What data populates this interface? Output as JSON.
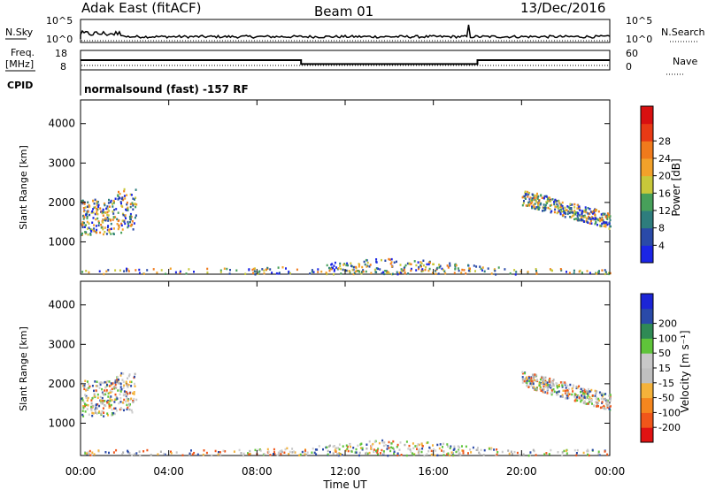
{
  "header": {
    "station": "Adak East (fitACF)",
    "beam": "Beam 01",
    "date": "13/Dec/2016"
  },
  "side_labels": {
    "nsky": "N.Sky",
    "nsearch": "N.Search",
    "freq_line1": "Freq.",
    "freq_line2": "[MHz]",
    "nave": "Nave",
    "cpid": "CPID"
  },
  "mini_axes": {
    "nsky_top": "10^5",
    "nsky_bottom": "10^0",
    "nsearch_top": "10^5",
    "nsearch_bottom": "10^0",
    "freq_top": "18",
    "freq_bottom": "8",
    "nave_top": "60",
    "nave_bottom": "0"
  },
  "cpid_text": "normalsound (fast) -157 RF",
  "chart_data": [
    {
      "type": "line",
      "title": "N.Sky / N.Search",
      "ylim_log10": [
        0,
        5
      ],
      "note_spikes_hours": [
        0.3,
        0.6,
        0.9,
        1.2,
        1.5,
        17.6
      ]
    },
    {
      "type": "line",
      "name": "Freq. [MHz]",
      "ylim": [
        8,
        18
      ],
      "x": [
        0,
        10,
        10,
        18,
        18,
        24
      ],
      "values": [
        13,
        13,
        11,
        11,
        13,
        13
      ]
    },
    {
      "type": "heatmap",
      "name": "Power",
      "ylabel": "Slant Range [km]",
      "yticks": [
        "1000",
        "2000",
        "3000",
        "4000"
      ],
      "ylim": [
        180,
        4600
      ],
      "colorbar_label": "Power [dB]",
      "colorbar_ticks": [
        "4",
        "8",
        "12",
        "16",
        "20",
        "24",
        "28"
      ],
      "colorbar_colors": [
        "#1b25e6",
        "#2a4aa8",
        "#2e7d7d",
        "#47a05a",
        "#c8c83a",
        "#f2a12a",
        "#f07a1c",
        "#e83a15",
        "#d81010"
      ]
    },
    {
      "type": "heatmap",
      "name": "Velocity",
      "ylabel": "Slant Range [km]",
      "yticks": [
        "1000",
        "2000",
        "3000",
        "4000"
      ],
      "ylim": [
        180,
        4600
      ],
      "colorbar_label": "Velocity [m s⁻¹]",
      "colorbar_ticks": [
        "-200",
        "-100",
        "-50",
        "-15",
        "15",
        "50",
        "100",
        "200"
      ],
      "colorbar_colors": [
        "#e01212",
        "#f0561a",
        "#f5861e",
        "#f5b23a",
        "#c0c0c0",
        "#c8c8c8",
        "#5fc43a",
        "#2f8a55",
        "#2a4aa8",
        "#1b25d6"
      ]
    }
  ],
  "time_axis": {
    "ticks": [
      "00:00",
      "04:00",
      "08:00",
      "12:00",
      "16:00",
      "20:00",
      "00:00"
    ],
    "label": "Time UT"
  }
}
